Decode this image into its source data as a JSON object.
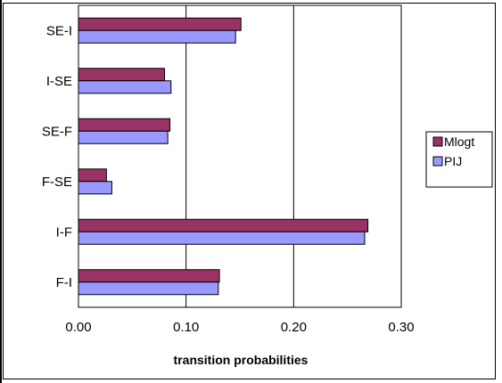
{
  "chart_data": {
    "type": "bar",
    "orientation": "horizontal",
    "categories": [
      "SE-I",
      "I-SE",
      "SE-F",
      "F-SE",
      "I-F",
      "F-I"
    ],
    "series": [
      {
        "name": "Mlogt",
        "color": "#993366",
        "values": [
          0.151,
          0.08,
          0.085,
          0.026,
          0.269,
          0.131
        ]
      },
      {
        "name": "PIJ",
        "color": "#9999ff",
        "values": [
          0.146,
          0.086,
          0.083,
          0.031,
          0.266,
          0.13
        ]
      }
    ],
    "xlabel": "transition probabilities",
    "ylabel": "",
    "xlim": [
      0,
      0.3
    ],
    "xticks": [
      "0.00",
      "0.10",
      "0.20",
      "0.30"
    ],
    "grid": "vertical",
    "legend": "right"
  }
}
